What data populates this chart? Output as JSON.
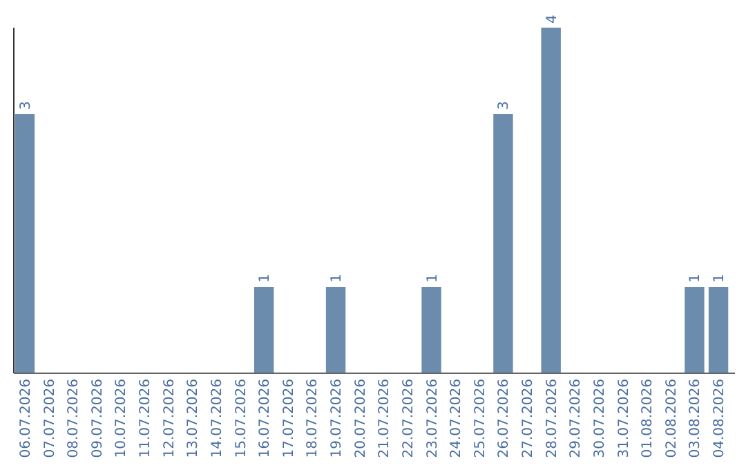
{
  "chart_data": {
    "type": "bar",
    "categories": [
      "06.07.2026",
      "07.07.2026",
      "08.07.2026",
      "09.07.2026",
      "10.07.2026",
      "11.07.2026",
      "12.07.2026",
      "13.07.2026",
      "14.07.2026",
      "15.07.2026",
      "16.07.2026",
      "17.07.2026",
      "18.07.2026",
      "19.07.2026",
      "20.07.2026",
      "21.07.2026",
      "22.07.2026",
      "23.07.2026",
      "24.07.2026",
      "25.07.2026",
      "26.07.2026",
      "27.07.2026",
      "28.07.2026",
      "29.07.2026",
      "30.07.2026",
      "31.07.2026",
      "01.08.2026",
      "02.08.2026",
      "03.08.2026",
      "04.08.2026"
    ],
    "values": [
      3,
      0,
      0,
      0,
      0,
      0,
      0,
      0,
      0,
      0,
      1,
      0,
      0,
      1,
      0,
      0,
      0,
      1,
      0,
      0,
      3,
      0,
      4,
      0,
      0,
      0,
      0,
      0,
      1,
      1
    ],
    "value_labels": [
      "3",
      null,
      null,
      null,
      null,
      null,
      null,
      null,
      null,
      null,
      "1",
      null,
      null,
      "1",
      null,
      null,
      null,
      "1",
      null,
      null,
      "3",
      null,
      "4",
      null,
      null,
      null,
      null,
      null,
      "1",
      "1"
    ],
    "color": "#6b8cad",
    "ylim": [
      0,
      4
    ],
    "tick_labels": "x"
  }
}
